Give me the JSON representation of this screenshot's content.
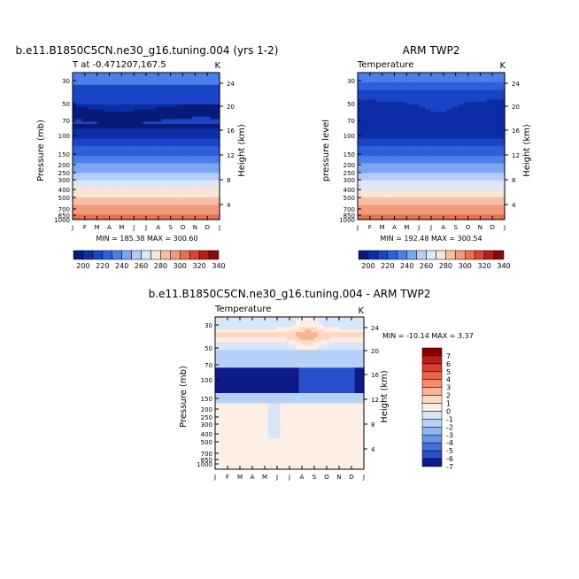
{
  "chart_data": [
    {
      "type": "heatmap",
      "title": "b.e11.B1850C5CN.ne30_g16.tuning.004 (yrs 1-2)",
      "subtitle_left": "T at -0.471207,167.5",
      "subtitle_right": "K",
      "ylabel": "Pressure (mb)",
      "ylabel_right": "Height (km)",
      "x_ticks": [
        "J",
        "F",
        "M",
        "A",
        "M",
        "J",
        "J",
        "A",
        "S",
        "O",
        "N",
        "D",
        "J"
      ],
      "y_ticks": [
        "30",
        "50",
        "70",
        "100",
        "150",
        "200",
        "250",
        "300",
        "400",
        "500",
        "700",
        "850",
        "1000"
      ],
      "height_ticks": [
        "24",
        "20",
        "16",
        "12",
        "8",
        "4"
      ],
      "min_max": "MIN = 185.38 MAX = 300.60",
      "colorbar_labels": [
        "200",
        "220",
        "240",
        "260",
        "280",
        "300",
        "320",
        "340"
      ],
      "field": "model"
    },
    {
      "type": "heatmap",
      "title": "ARM TWP2",
      "subtitle_left": "Temperature",
      "subtitle_right": "K",
      "ylabel": "pressure level",
      "ylabel_right": "Height (km)",
      "x_ticks": [
        "J",
        "F",
        "M",
        "A",
        "M",
        "J",
        "J",
        "A",
        "S",
        "O",
        "N",
        "D",
        "J"
      ],
      "y_ticks": [
        "30",
        "50",
        "70",
        "100",
        "150",
        "200",
        "250",
        "300",
        "400",
        "500",
        "700",
        "850",
        "1000"
      ],
      "height_ticks": [
        "24",
        "20",
        "16",
        "12",
        "8",
        "4"
      ],
      "min_max": "MIN = 192.48 MAX = 300.54",
      "colorbar_labels": [
        "200",
        "220",
        "240",
        "260",
        "280",
        "300",
        "320",
        "340"
      ],
      "field": "obs"
    },
    {
      "type": "heatmap",
      "title": "b.e11.B1850C5CN.ne30_g16.tuning.004 - ARM TWP2",
      "subtitle_left": "Temperature",
      "subtitle_right": "K",
      "ylabel": "Pressure (mb)",
      "ylabel_right": "Height (km)",
      "x_ticks": [
        "J",
        "F",
        "M",
        "A",
        "M",
        "J",
        "J",
        "A",
        "S",
        "O",
        "N",
        "D",
        "J"
      ],
      "y_ticks": [
        "30",
        "50",
        "70",
        "100",
        "150",
        "200",
        "250",
        "300",
        "400",
        "500",
        "700",
        "850",
        "1000"
      ],
      "height_ticks": [
        "24",
        "20",
        "16",
        "12",
        "8",
        "4"
      ],
      "min_max": "MIN = -10.14 MAX =   3.37",
      "colorbar_labels": [
        "7",
        "6",
        "5",
        "4",
        "3",
        "2",
        "1",
        "0",
        "-1",
        "-2",
        "-3",
        "-4",
        "-5",
        "-6",
        "-7"
      ],
      "field": "diff"
    }
  ],
  "colors": {
    "abs_scale": [
      "#0a1a78",
      "#0d2da8",
      "#1a44c8",
      "#2f5fdc",
      "#4a7ee8",
      "#7ea6f0",
      "#b4cdf6",
      "#dce8fa",
      "#fbe3d6",
      "#f5c0a5",
      "#f09a7b",
      "#e86f52",
      "#d94432",
      "#b81e1b",
      "#8a0a0a"
    ],
    "diff_scale": [
      "#8b0000",
      "#b51d1d",
      "#d53c32",
      "#e8644a",
      "#f38d6d",
      "#f8b497",
      "#fbd9c6",
      "#fdeee6",
      "#d8e6f8",
      "#b7d1f4",
      "#91b4ef",
      "#6a93e7",
      "#4570da",
      "#2b4fcc",
      "#0c1a8a"
    ]
  }
}
